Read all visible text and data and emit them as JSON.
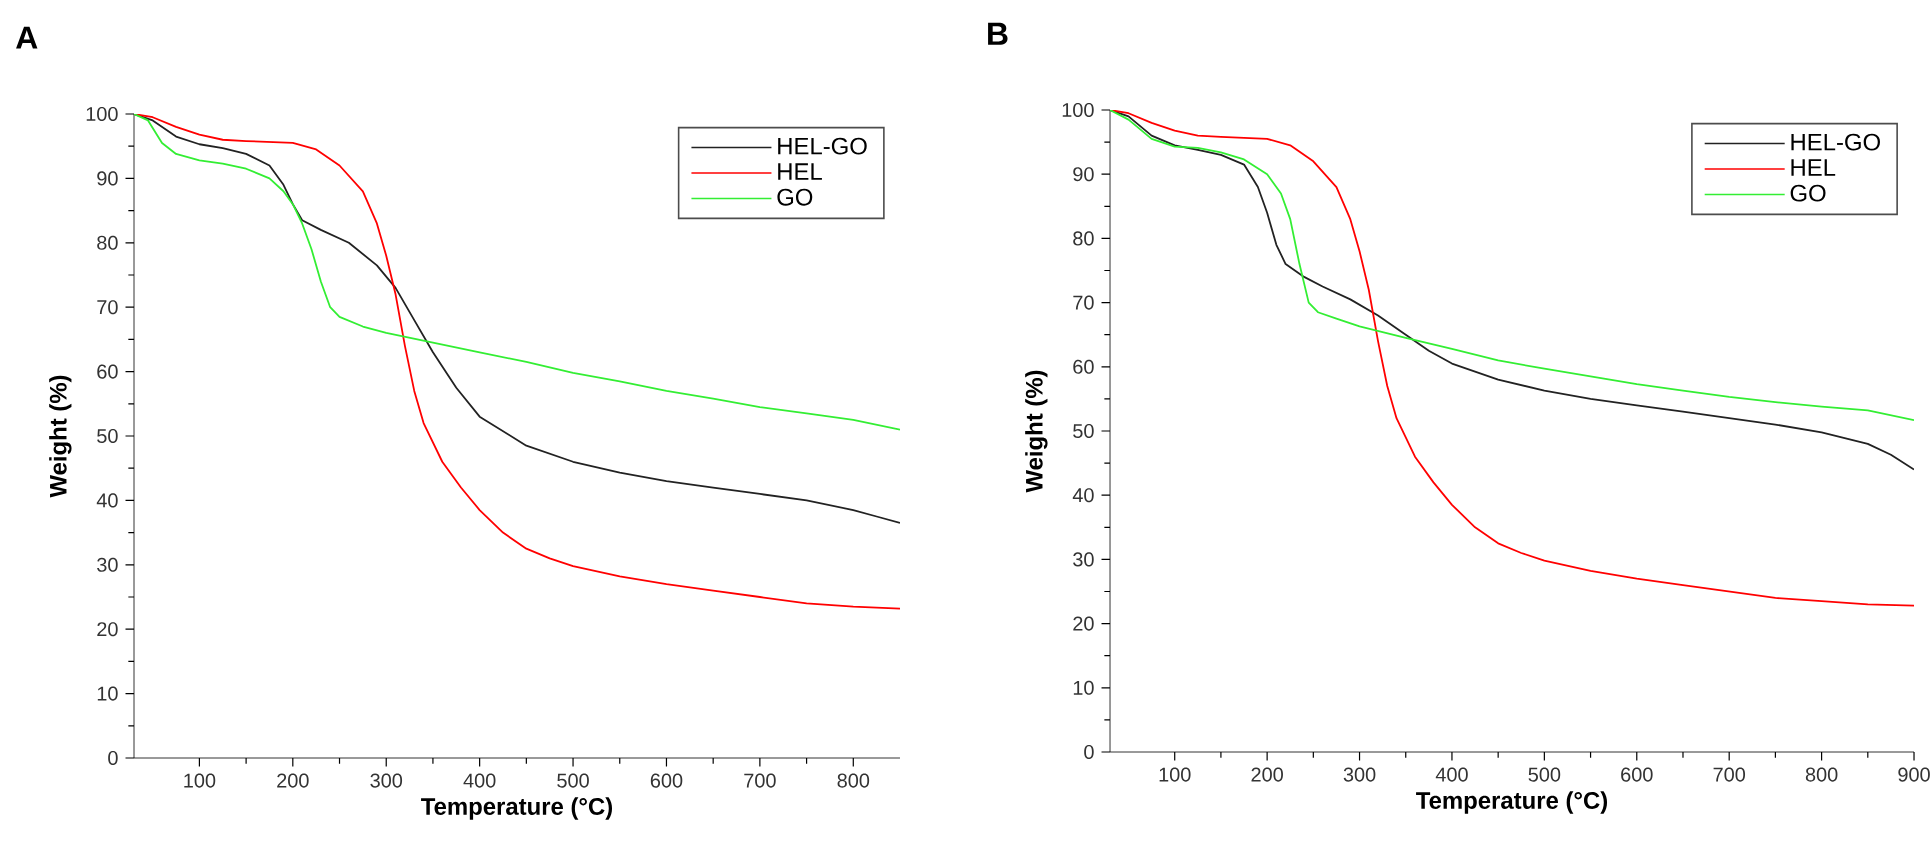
{
  "chart_data": [
    {
      "type": "line",
      "title": "A",
      "xlabel": "Temperature (°C)",
      "ylabel": "Weight (%)",
      "xlim": [
        30,
        850
      ],
      "ylim": [
        0,
        100
      ],
      "xticks": [
        100,
        200,
        300,
        400,
        500,
        600,
        700,
        800
      ],
      "yticks": [
        0,
        10,
        20,
        30,
        40,
        50,
        60,
        70,
        80,
        90,
        100
      ],
      "legend": "top right",
      "series": [
        {
          "name": "HEL-GO",
          "color": "#222222",
          "x": [
            30,
            50,
            75,
            100,
            125,
            150,
            175,
            190,
            200,
            210,
            230,
            260,
            290,
            310,
            330,
            350,
            375,
            400,
            450,
            500,
            550,
            600,
            650,
            700,
            750,
            800,
            825,
            850
          ],
          "values": [
            100,
            99,
            96.5,
            95.3,
            94.7,
            93.8,
            92,
            89,
            86,
            83.5,
            82,
            80,
            76.5,
            73,
            68,
            63,
            57.5,
            53,
            48.5,
            46,
            44.3,
            43,
            42,
            41,
            40,
            38.5,
            37.5,
            36.5
          ]
        },
        {
          "name": "HEL",
          "color": "#ff0000",
          "x": [
            30,
            50,
            75,
            100,
            125,
            150,
            200,
            225,
            250,
            275,
            290,
            300,
            310,
            320,
            330,
            340,
            360,
            380,
            400,
            425,
            450,
            475,
            500,
            550,
            600,
            650,
            700,
            750,
            800,
            850
          ],
          "values": [
            100,
            99.5,
            98,
            96.8,
            96,
            95.8,
            95.5,
            94.5,
            92,
            88,
            83,
            78,
            72,
            64,
            57,
            52,
            46,
            42,
            38.5,
            35,
            32.5,
            31,
            29.8,
            28.2,
            27,
            26,
            25,
            24,
            23.5,
            23.2
          ]
        },
        {
          "name": "GO",
          "color": "#33ee33",
          "x": [
            30,
            45,
            60,
            75,
            100,
            125,
            150,
            175,
            190,
            200,
            210,
            220,
            230,
            240,
            250,
            275,
            300,
            350,
            400,
            450,
            500,
            550,
            600,
            650,
            700,
            750,
            800,
            850
          ],
          "values": [
            100,
            99,
            95.5,
            93.8,
            92.8,
            92.3,
            91.5,
            90,
            88,
            86,
            83,
            79,
            74,
            70,
            68.5,
            67,
            66,
            64.5,
            63,
            61.5,
            59.8,
            58.5,
            57,
            55.8,
            54.5,
            53.5,
            52.5,
            51
          ]
        }
      ]
    },
    {
      "type": "line",
      "title": "B",
      "xlabel": "Temperature (°C)",
      "ylabel": "Weight (%)",
      "xlim": [
        30,
        900
      ],
      "ylim": [
        0,
        100
      ],
      "xticks": [
        100,
        200,
        300,
        400,
        500,
        600,
        700,
        800,
        900
      ],
      "yticks": [
        0,
        10,
        20,
        30,
        40,
        50,
        60,
        70,
        80,
        90,
        100
      ],
      "legend": "top right",
      "series": [
        {
          "name": "HEL-GO",
          "color": "#222222",
          "x": [
            30,
            50,
            75,
            100,
            125,
            150,
            175,
            190,
            200,
            210,
            220,
            240,
            260,
            290,
            320,
            350,
            375,
            400,
            450,
            500,
            550,
            600,
            650,
            700,
            750,
            800,
            850,
            875,
            900
          ],
          "values": [
            100,
            99,
            96,
            94.5,
            93.8,
            93,
            91.5,
            88,
            84,
            79,
            76,
            74,
            72.5,
            70.5,
            68,
            65,
            62.5,
            60.5,
            58,
            56.3,
            55,
            54,
            53,
            52,
            51,
            49.8,
            48,
            46.3,
            44
          ]
        },
        {
          "name": "HEL",
          "color": "#ff0000",
          "x": [
            30,
            50,
            75,
            100,
            125,
            150,
            200,
            225,
            250,
            275,
            290,
            300,
            310,
            320,
            330,
            340,
            360,
            380,
            400,
            425,
            450,
            475,
            500,
            550,
            600,
            650,
            700,
            750,
            800,
            850,
            900
          ],
          "values": [
            100,
            99.5,
            98,
            96.8,
            96,
            95.8,
            95.5,
            94.5,
            92,
            88,
            83,
            78,
            72,
            64,
            57,
            52,
            46,
            42,
            38.5,
            35,
            32.5,
            31,
            29.8,
            28.2,
            27,
            26,
            25,
            24,
            23.5,
            23,
            22.8
          ]
        },
        {
          "name": "GO",
          "color": "#33ee33",
          "x": [
            30,
            50,
            75,
            100,
            125,
            150,
            175,
            200,
            215,
            225,
            235,
            245,
            255,
            275,
            300,
            350,
            400,
            450,
            500,
            550,
            600,
            650,
            700,
            750,
            800,
            850,
            900
          ],
          "values": [
            100,
            98.5,
            95.5,
            94.3,
            94.1,
            93.4,
            92.3,
            90,
            87,
            83,
            76,
            70,
            68.5,
            67.5,
            66.3,
            64.5,
            62.8,
            61,
            59.7,
            58.5,
            57.3,
            56.3,
            55.3,
            54.5,
            53.8,
            53.2,
            51.7
          ]
        }
      ]
    }
  ]
}
